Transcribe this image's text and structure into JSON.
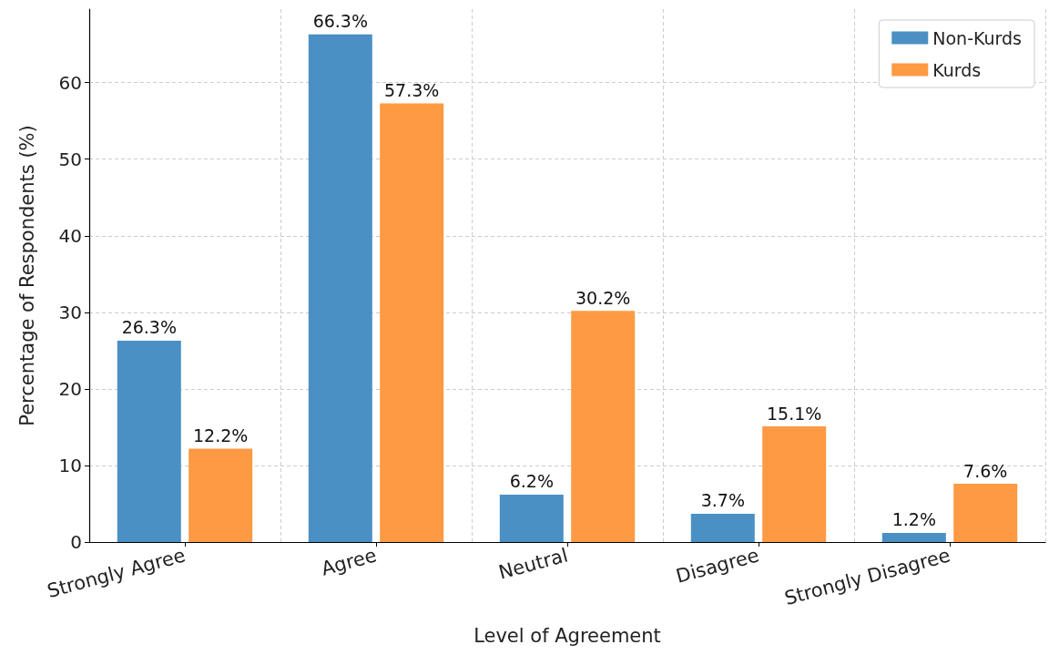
{
  "chart_data": {
    "type": "bar",
    "xlabel": "Level of Agreement",
    "ylabel": "Percentage of Respondents (%)",
    "categories": [
      "Strongly Agree",
      "Agree",
      "Neutral",
      "Disagree",
      "Strongly Disagree"
    ],
    "series": [
      {
        "name": "Non-Kurds",
        "color": "#4a90c4",
        "values": [
          26.3,
          66.3,
          6.2,
          3.7,
          1.2
        ],
        "value_labels": [
          "26.3%",
          "66.3%",
          "6.2%",
          "3.7%",
          "1.2%"
        ]
      },
      {
        "name": "Kurds",
        "color": "#fd9a43",
        "values": [
          12.2,
          57.3,
          30.2,
          15.1,
          7.6
        ],
        "value_labels": [
          "12.2%",
          "57.3%",
          "30.2%",
          "15.1%",
          "7.6%"
        ]
      }
    ],
    "ylim": [
      0,
      69.6
    ],
    "yticks": [
      0,
      10,
      20,
      30,
      40,
      50,
      60
    ],
    "grid": true,
    "legend": "top right"
  }
}
